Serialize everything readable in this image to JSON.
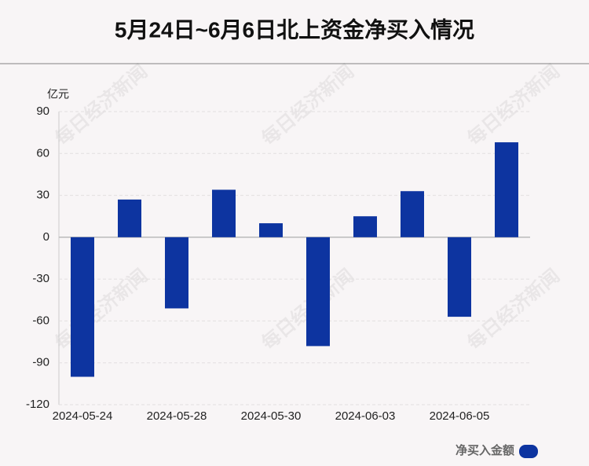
{
  "chart_data": {
    "type": "bar",
    "title": "5月24日~6月6日北上资金净买入情况",
    "y_unit": "亿元",
    "watermark": "每日经济新闻",
    "categories": [
      "2024-05-24",
      null,
      "2024-05-28",
      null,
      "2024-05-30",
      null,
      "2024-06-03",
      null,
      "2024-06-05",
      null
    ],
    "series": [
      {
        "name": "净买入金额",
        "color": "#0d34a0",
        "values": [
          -100,
          27,
          -51,
          34,
          10,
          -78,
          15,
          33,
          -57,
          68
        ]
      }
    ],
    "ylim": [
      -120,
      90
    ],
    "yticks": [
      90,
      60,
      30,
      0,
      -30,
      -60,
      -90,
      -120
    ],
    "grid": true
  }
}
